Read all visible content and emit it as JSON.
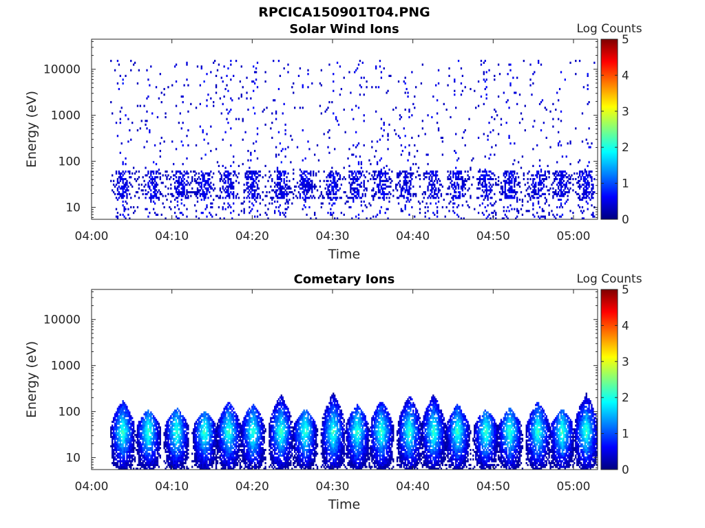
{
  "figure": {
    "title": "RPCICA150901T04.PNG"
  },
  "chart_data": [
    {
      "type": "heatmap",
      "title": "Solar Wind Ions",
      "xlabel": "Time",
      "ylabel": "Energy (eV)",
      "x_ticks": [
        "04:00",
        "04:10",
        "04:20",
        "04:30",
        "04:40",
        "04:50",
        "05:00"
      ],
      "x_range_minutes": [
        0,
        63
      ],
      "y_ticks": [
        "10",
        "100",
        "1000",
        "10000"
      ],
      "y_scale": "log",
      "y_range_eV": [
        5.5,
        45000
      ],
      "colorbar": {
        "label": "Log Counts",
        "range": [
          0,
          5
        ],
        "ticks": [
          "0",
          "1",
          "2",
          "3",
          "4",
          "5"
        ],
        "colormap": "jet"
      },
      "data_coverage_minutes": [
        2.2,
        62.6
      ],
      "bursts_center_minutes": [
        3.8,
        7.5,
        11,
        14,
        17,
        20,
        23.5,
        26.5,
        30,
        33,
        36,
        39,
        42.5,
        45.5,
        49,
        52,
        55.5,
        58.5,
        61.5
      ],
      "dense_energy_band_eV": [
        15,
        60
      ],
      "sparse_energy_band_eV": [
        60,
        15000
      ],
      "typical_log_counts": 0.3
    },
    {
      "type": "heatmap",
      "title": "Cometary Ions",
      "xlabel": "Time",
      "ylabel": "Energy (eV)",
      "x_ticks": [
        "04:00",
        "04:10",
        "04:20",
        "04:30",
        "04:40",
        "04:50",
        "05:00"
      ],
      "x_range_minutes": [
        0,
        63
      ],
      "y_ticks": [
        "10",
        "100",
        "1000",
        "10000"
      ],
      "y_scale": "log",
      "y_range_eV": [
        5.5,
        45000
      ],
      "colorbar": {
        "label": "Log Counts",
        "range": [
          0,
          5
        ],
        "ticks": [
          "0",
          "1",
          "2",
          "3",
          "4",
          "5"
        ],
        "colormap": "jet"
      },
      "bursts_center_minutes": [
        3.8,
        7,
        10.5,
        14,
        17,
        20,
        23.5,
        26.5,
        30,
        33,
        36,
        39.5,
        42.5,
        45.5,
        49,
        52,
        55.5,
        58.5,
        61.5
      ],
      "burst_peak_energy_eV": [
        170,
        110,
        120,
        100,
        160,
        150,
        230,
        110,
        250,
        140,
        170,
        220,
        230,
        140,
        110,
        120,
        160,
        110,
        240
      ],
      "core_energy_eV": 35,
      "peak_log_counts": 2.3
    }
  ]
}
